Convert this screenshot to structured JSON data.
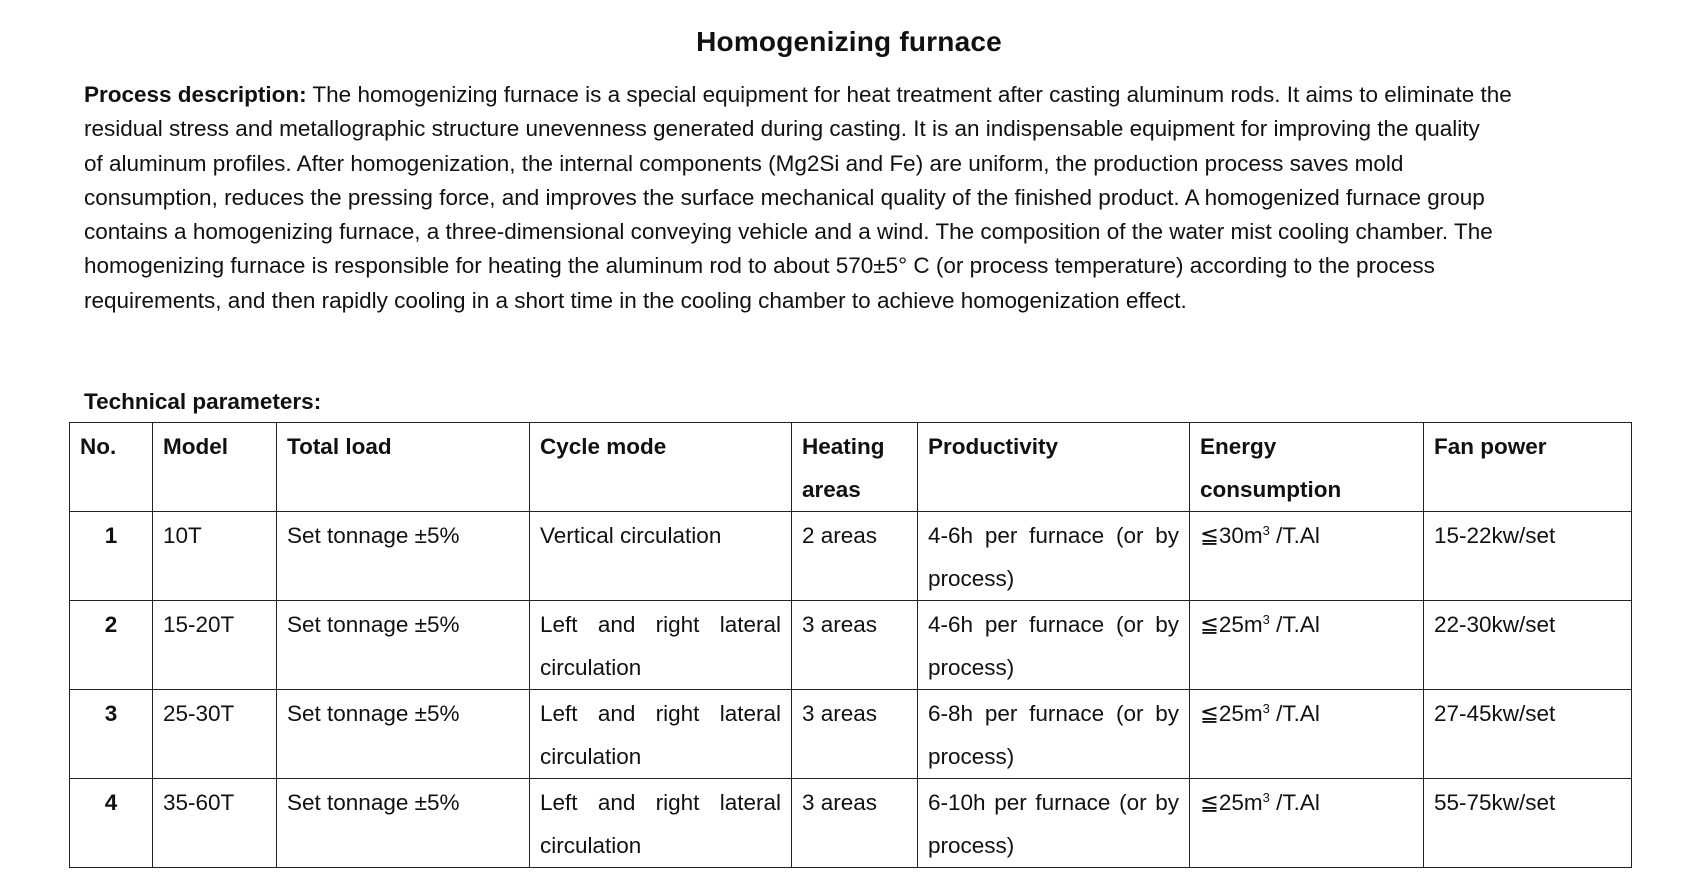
{
  "title": "Homogenizing furnace",
  "description": {
    "label": "Process description:",
    "lines": [
      " The homogenizing furnace is a special equipment for heat treatment after casting aluminum rods. It aims to eliminate the",
      "residual stress and metallographic structure unevenness generated during casting. It is an indispensable equipment for improving the quality",
      "of aluminum profiles. After homogenization, the internal components (Mg2Si and Fe) are uniform, the production process saves mold",
      "consumption, reduces the pressing force, and improves the surface mechanical quality of the finished product. A homogenized furnace group",
      "contains a homogenizing furnace, a three-dimensional conveying vehicle and a wind. The composition of the water mist cooling chamber. The",
      "homogenizing furnace is responsible for heating the aluminum rod to about 570±5°  C (or process temperature) according to the process",
      "requirements, and then rapidly cooling in a short time in the cooling chamber to achieve homogenization effect."
    ]
  },
  "technical_parameters_heading": "Technical parameters:",
  "table": {
    "headers": {
      "no": "No.",
      "model": "Model",
      "total_load": "Total load",
      "cycle_mode": "Cycle mode",
      "heating_areas": "Heating areas",
      "productivity": "Productivity",
      "energy_consumption": "Energy consumption",
      "fan_power": "Fan power"
    },
    "energy_unit_after_sup": " /T.Al",
    "energy_sup": "3",
    "rows": [
      {
        "no": "1",
        "model": "10T",
        "total_load": "Set tonnage ±5%",
        "cycle_mode": "Vertical circulation",
        "heating_areas": "2 areas",
        "productivity": "4-6h per furnace (or by process)",
        "energy_value": "≦30m",
        "fan_power": "15-22kw/set"
      },
      {
        "no": "2",
        "model": "15-20T",
        "total_load": "Set tonnage ±5%",
        "cycle_mode": "Left and right lateral circulation",
        "heating_areas": "3 areas",
        "productivity": "4-6h per furnace (or by process)",
        "energy_value": "≦25m",
        "fan_power": "22-30kw/set"
      },
      {
        "no": "3",
        "model": "25-30T",
        "total_load": "Set tonnage ±5%",
        "cycle_mode": "Left and right lateral circulation",
        "heating_areas": "3 areas",
        "productivity": "6-8h per furnace (or by process)",
        "energy_value": "≦25m",
        "fan_power": "27-45kw/set"
      },
      {
        "no": "4",
        "model": "35-60T",
        "total_load": "Set tonnage ±5%",
        "cycle_mode": "Left and right lateral circulation",
        "heating_areas": "3 areas",
        "productivity": "6-10h per furnace (or by process)",
        "energy_value": "≦25m",
        "fan_power": "55-75kw/set"
      }
    ]
  }
}
